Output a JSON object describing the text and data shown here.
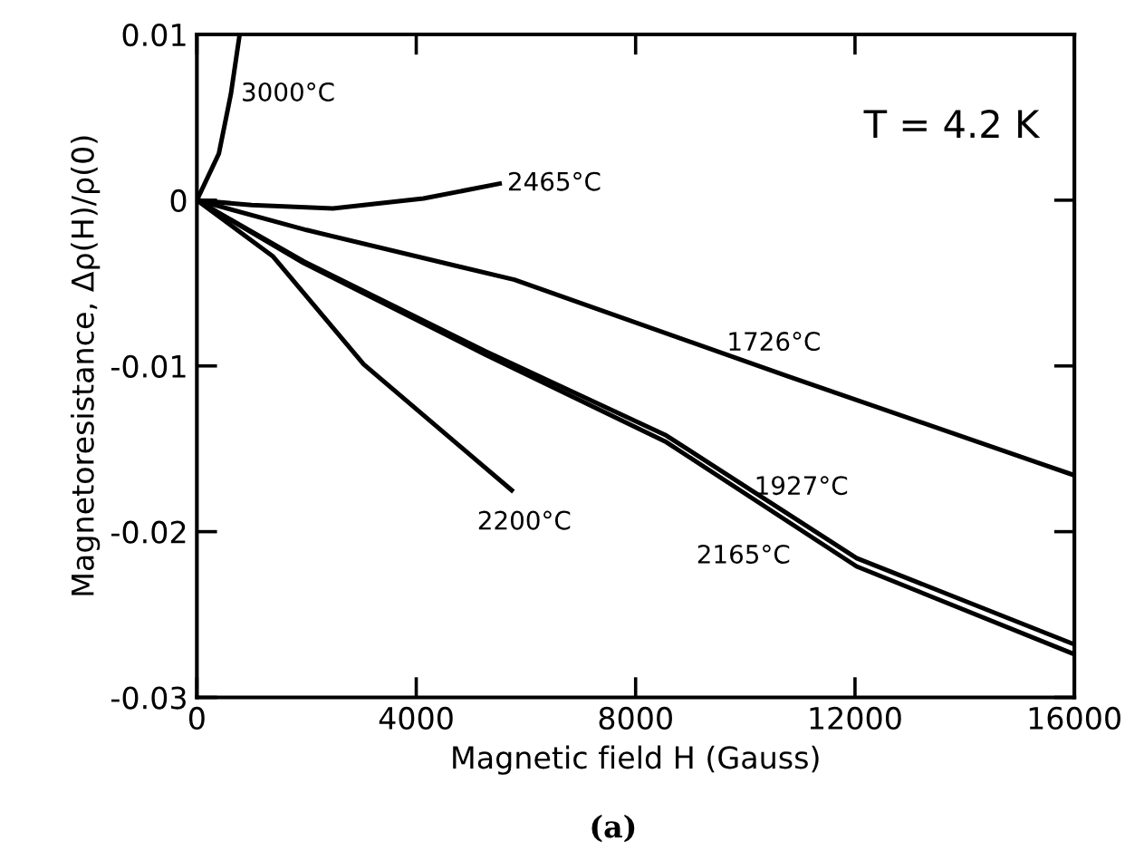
{
  "chart_data": {
    "type": "line",
    "xlabel": "Magnetic field H (Gauss)",
    "ylabel": "Magnetoresistance, Δρ(H)/ρ(0)",
    "xlim": [
      0,
      16000
    ],
    "xticks": [
      0,
      4000,
      8000,
      12000,
      16000
    ],
    "ylim": [
      -0.03,
      0.01
    ],
    "yticks": [
      {
        "value": 0.01,
        "label": "0.01"
      },
      {
        "value": 0,
        "label": "0"
      },
      {
        "value": -0.01,
        "label": "-0.01"
      },
      {
        "value": -0.02,
        "label": "-0.02"
      },
      {
        "value": -0.03,
        "label": "-0.03"
      }
    ],
    "grid": false,
    "legend": false,
    "marker": "none",
    "line_style": "solid",
    "series": [
      {
        "name": "3000°C",
        "color": "#000000",
        "x": [
          0,
          400,
          620,
          780
        ],
        "values": [
          0,
          0.0028,
          0.0064,
          0.01
        ]
      },
      {
        "name": "2465°C",
        "color": "#000000",
        "x": [
          0,
          1000,
          2480,
          4130,
          5520
        ],
        "values": [
          0,
          -0.0003,
          -0.0005,
          0.0001,
          0.001
        ]
      },
      {
        "name": "1726°C",
        "color": "#000000",
        "x": [
          0,
          2000,
          5790,
          10750,
          16000
        ],
        "values": [
          0,
          -0.0018,
          -0.0048,
          -0.0106,
          -0.0166
        ]
      },
      {
        "name": "2200°C",
        "color": "#000000",
        "x": [
          0,
          1390,
          3040,
          5740
        ],
        "values": [
          0,
          -0.0034,
          -0.0099,
          -0.0175
        ]
      },
      {
        "name": "1927°C",
        "color": "#000000",
        "x": [
          0,
          1950,
          5250,
          8560,
          12030,
          16000
        ],
        "values": [
          0,
          -0.0037,
          -0.0091,
          -0.0142,
          -0.0216,
          -0.0268
        ]
      },
      {
        "name": "2165°C",
        "color": "#000000",
        "x": [
          0,
          1950,
          5250,
          8560,
          12030,
          16000
        ],
        "values": [
          0,
          -0.0038,
          -0.0093,
          -0.0146,
          -0.0221,
          -0.0274
        ]
      }
    ],
    "annotations": [
      "T = 4.2 K",
      "(a)"
    ]
  }
}
